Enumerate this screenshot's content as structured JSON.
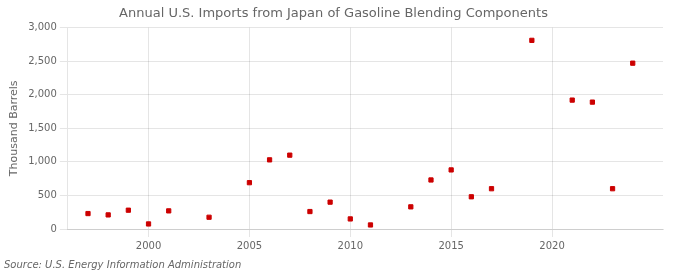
{
  "chart_data": {
    "type": "scatter",
    "title": "Annual U.S. Imports from Japan of Gasoline Blending Components",
    "y_label": "Thousand Barrels",
    "source": "Source: U.S. Energy Information Administration",
    "x": [
      1997,
      1998,
      1999,
      2000,
      2001,
      2003,
      2005,
      2006,
      2007,
      2008,
      2009,
      2010,
      2011,
      2013,
      2014,
      2015,
      2016,
      2017,
      2019,
      2021,
      2022,
      2023,
      2024
    ],
    "values": [
      230,
      210,
      280,
      75,
      270,
      175,
      690,
      1030,
      1100,
      260,
      400,
      150,
      60,
      330,
      730,
      880,
      480,
      600,
      2810,
      1920,
      1890,
      600,
      2470
    ],
    "color": "#cc0000",
    "marker": "square",
    "xlim": [
      1996,
      2025.5
    ],
    "ylim": [
      0,
      3000
    ],
    "xticks": [
      2000,
      2005,
      2010,
      2015,
      2020
    ],
    "yticks": [
      0,
      500,
      {
        "value": 1000,
        "label": "1,000"
      },
      {
        "value": 1500,
        "label": "1,500"
      },
      {
        "value": 2000,
        "label": "2,000"
      },
      {
        "value": 2500,
        "label": "2,500"
      },
      {
        "value": 3000,
        "label": "3,000"
      }
    ],
    "grid": true
  }
}
